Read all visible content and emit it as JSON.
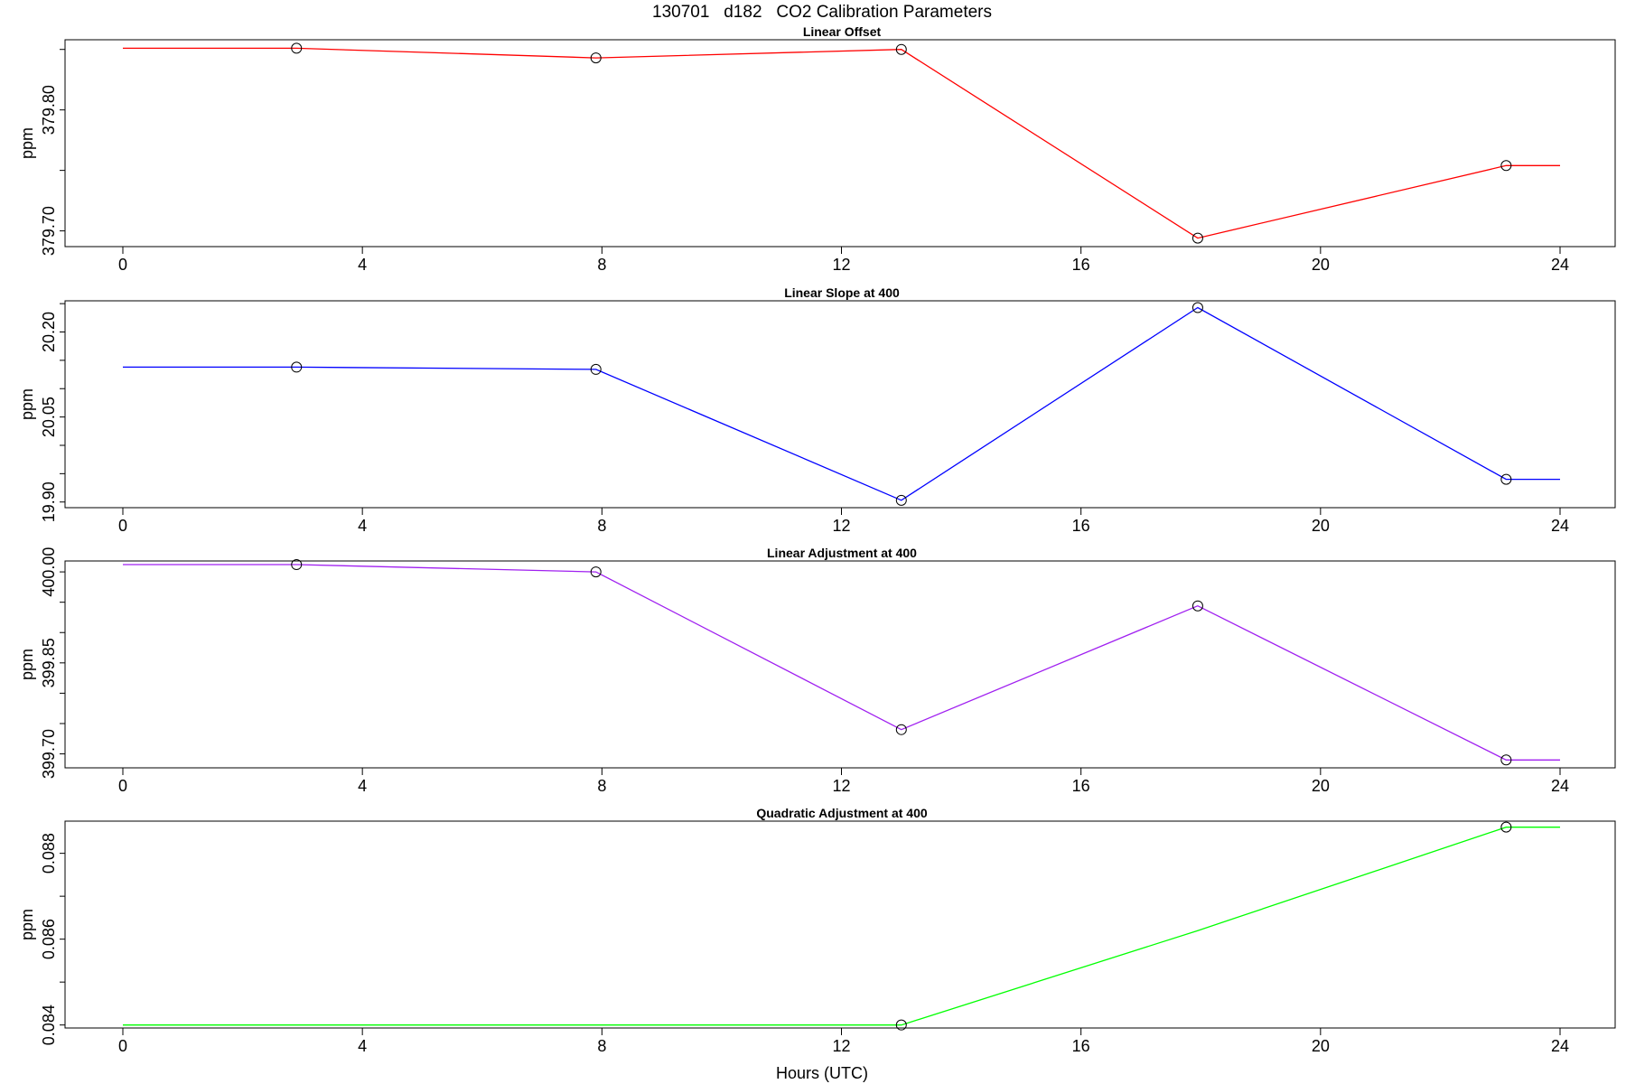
{
  "figure": {
    "title": "130701   d182   CO2 Calibration Parameters",
    "xlabel": "Hours (UTC)"
  },
  "chart_data": [
    {
      "type": "line",
      "title": "Linear Offset",
      "ylabel": "ppm",
      "xlim": [
        0,
        24
      ],
      "ylim": [
        379.687,
        379.858
      ],
      "x_ticks": [
        0,
        4,
        8,
        12,
        16,
        20,
        24
      ],
      "y_ticks": [
        379.7,
        379.8
      ],
      "y_tick_labels": [
        "379.70",
        "379.80"
      ],
      "y_minor_ticks": [
        379.7,
        379.75,
        379.8,
        379.85
      ],
      "color": "#ff0000",
      "x": [
        0,
        2.9,
        7.9,
        13.0,
        17.95,
        23.1,
        24
      ],
      "y": [
        379.851,
        379.851,
        379.843,
        379.85,
        379.694,
        379.754,
        379.754
      ],
      "markers": [
        false,
        true,
        true,
        true,
        true,
        true,
        false
      ]
    },
    {
      "type": "line",
      "title": "Linear Slope at 400",
      "ylabel": "ppm",
      "xlim": [
        0,
        24
      ],
      "ylim": [
        19.89,
        20.255
      ],
      "x_ticks": [
        0,
        4,
        8,
        12,
        16,
        20,
        24
      ],
      "y_ticks": [
        19.9,
        20.05,
        20.2
      ],
      "y_tick_labels": [
        "19.90",
        "20.05",
        "20.20"
      ],
      "y_minor_ticks": [
        19.9,
        19.95,
        20.0,
        20.05,
        20.1,
        20.15,
        20.2,
        20.25
      ],
      "color": "#0000ff",
      "x": [
        0,
        2.9,
        7.9,
        13.0,
        17.95,
        23.1,
        24
      ],
      "y": [
        20.138,
        20.138,
        20.134,
        19.903,
        20.243,
        19.94,
        19.94
      ],
      "markers": [
        false,
        true,
        true,
        true,
        true,
        true,
        false
      ]
    },
    {
      "type": "line",
      "title": "Linear Adjustment at 400",
      "ylabel": "ppm",
      "xlim": [
        0,
        24
      ],
      "ylim": [
        399.677,
        400.018
      ],
      "x_ticks": [
        0,
        4,
        8,
        12,
        16,
        20,
        24
      ],
      "y_ticks": [
        399.7,
        399.85,
        400.0
      ],
      "y_tick_labels": [
        "399.70",
        "399.85",
        "400.00"
      ],
      "y_minor_ticks": [
        399.7,
        399.75,
        399.8,
        399.85,
        399.9,
        399.95,
        400.0
      ],
      "color": "#a020f0",
      "x": [
        0,
        2.9,
        7.9,
        13.0,
        17.95,
        23.1,
        24
      ],
      "y": [
        400.012,
        400.012,
        400.0,
        399.74,
        399.944,
        399.69,
        399.69
      ],
      "markers": [
        false,
        true,
        true,
        true,
        true,
        true,
        false
      ]
    },
    {
      "type": "line",
      "title": "Quadratic Adjustment at 400",
      "ylabel": "ppm",
      "xlim": [
        0,
        24
      ],
      "ylim": [
        0.08393,
        0.08875
      ],
      "x_ticks": [
        0,
        4,
        8,
        12,
        16,
        20,
        24
      ],
      "y_ticks": [
        0.084,
        0.086,
        0.088
      ],
      "y_tick_labels": [
        "0.084",
        "0.086",
        "0.088"
      ],
      "y_minor_ticks": [
        0.084,
        0.085,
        0.086,
        0.087,
        0.088
      ],
      "color": "#00ff00",
      "x": [
        0,
        2.9,
        7.9,
        13.0,
        17.95,
        23.1,
        24
      ],
      "y": [
        0.084,
        0.084,
        0.084,
        0.084,
        0.0862,
        0.08861,
        0.08861
      ],
      "markers": [
        false,
        false,
        false,
        true,
        false,
        true,
        false
      ]
    }
  ]
}
